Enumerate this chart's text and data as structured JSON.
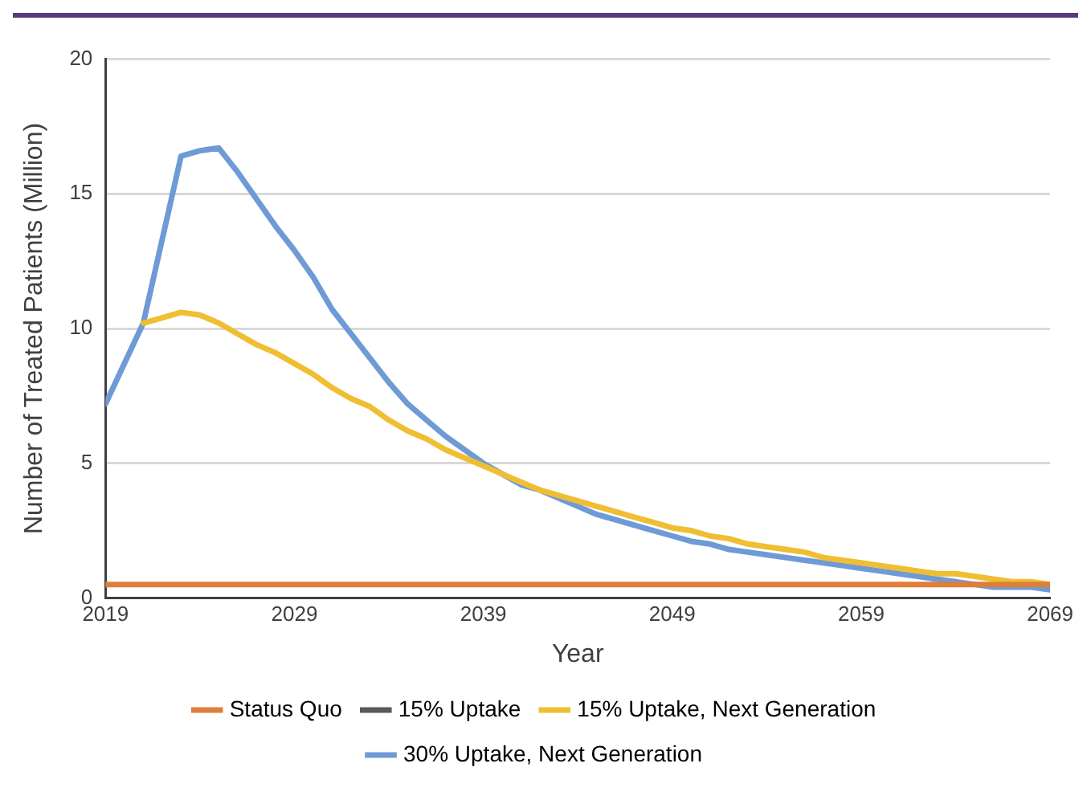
{
  "chart_data": {
    "type": "line",
    "xlabel": "Year",
    "ylabel": "Number of Treated Patients (Million)",
    "x": [
      2019,
      2020,
      2021,
      2022,
      2023,
      2024,
      2025,
      2026,
      2027,
      2028,
      2029,
      2030,
      2031,
      2032,
      2033,
      2034,
      2035,
      2036,
      2037,
      2038,
      2039,
      2040,
      2041,
      2042,
      2043,
      2044,
      2045,
      2046,
      2047,
      2048,
      2049,
      2050,
      2051,
      2052,
      2053,
      2054,
      2055,
      2056,
      2057,
      2058,
      2059,
      2060,
      2061,
      2062,
      2063,
      2064,
      2065,
      2066,
      2067,
      2068,
      2069
    ],
    "series": [
      {
        "name": "Status Quo",
        "color": "#dd7f3a",
        "values": [
          0.5,
          0.5,
          0.5,
          0.5,
          0.5,
          0.5,
          0.5,
          0.5,
          0.5,
          0.5,
          0.5,
          0.5,
          0.5,
          0.5,
          0.5,
          0.5,
          0.5,
          0.5,
          0.5,
          0.5,
          0.5,
          0.5,
          0.5,
          0.5,
          0.5,
          0.5,
          0.5,
          0.5,
          0.5,
          0.5,
          0.5,
          0.5,
          0.5,
          0.5,
          0.5,
          0.5,
          0.5,
          0.5,
          0.5,
          0.5,
          0.5,
          0.5,
          0.5,
          0.5,
          0.5,
          0.5,
          0.5,
          0.5,
          0.5,
          0.5,
          0.5
        ]
      },
      {
        "name": "15% Uptake",
        "color": "#595959",
        "values": [
          null,
          null,
          null,
          null,
          null,
          null,
          null,
          null,
          null,
          null,
          null,
          null,
          null,
          null,
          null,
          null,
          null,
          null,
          null,
          null,
          null,
          null,
          null,
          null,
          null,
          null,
          null,
          null,
          null,
          null,
          null,
          null,
          null,
          null,
          null,
          null,
          null,
          null,
          null,
          null,
          null,
          null,
          null,
          null,
          null,
          null,
          null,
          null,
          null,
          null,
          null
        ]
      },
      {
        "name": "15% Uptake, Next Generation",
        "color": "#f0be32",
        "values": [
          null,
          null,
          10.2,
          10.4,
          10.6,
          10.5,
          10.2,
          9.8,
          9.4,
          9.1,
          8.7,
          8.3,
          7.8,
          7.4,
          7.1,
          6.6,
          6.2,
          5.9,
          5.5,
          5.2,
          4.9,
          4.6,
          4.3,
          4.0,
          3.8,
          3.6,
          3.4,
          3.2,
          3.0,
          2.8,
          2.6,
          2.5,
          2.3,
          2.2,
          2.0,
          1.9,
          1.8,
          1.7,
          1.5,
          1.4,
          1.3,
          1.2,
          1.1,
          1.0,
          0.9,
          0.9,
          0.8,
          0.7,
          0.6,
          0.6,
          0.5
        ]
      },
      {
        "name": "30% Uptake, Next Generation",
        "color": "#6e9bd6",
        "values": [
          7.2,
          8.7,
          10.2,
          13.3,
          16.4,
          16.6,
          16.7,
          15.8,
          14.8,
          13.8,
          12.9,
          11.9,
          10.7,
          9.8,
          8.9,
          8.0,
          7.2,
          6.6,
          6.0,
          5.5,
          5.0,
          4.6,
          4.2,
          4.0,
          3.7,
          3.4,
          3.1,
          2.9,
          2.7,
          2.5,
          2.3,
          2.1,
          2.0,
          1.8,
          1.7,
          1.6,
          1.5,
          1.4,
          1.3,
          1.2,
          1.1,
          1.0,
          0.9,
          0.8,
          0.7,
          0.6,
          0.5,
          0.4,
          0.4,
          0.4,
          0.3
        ]
      }
    ],
    "xlim": [
      2019,
      2069
    ],
    "xticks": [
      2019,
      2029,
      2039,
      2049,
      2059,
      2069
    ],
    "ylim": [
      0,
      20
    ],
    "yticks": [
      0,
      5,
      10,
      15,
      20
    ],
    "grid": "y",
    "legend": "bottom",
    "marker": "none",
    "line_style": "solid"
  }
}
